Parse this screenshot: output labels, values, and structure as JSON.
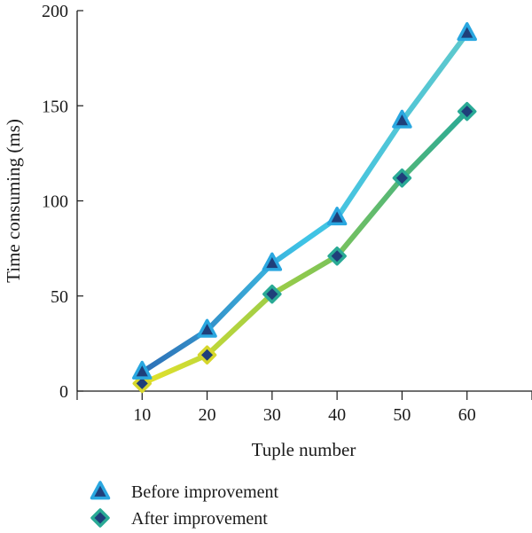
{
  "chart_data": {
    "type": "line",
    "xlabel": "Tuple number",
    "ylabel": "Time consuming (ms)",
    "x": [
      10,
      20,
      30,
      40,
      50,
      60
    ],
    "xlim": [
      0,
      70
    ],
    "ylim": [
      0,
      200
    ],
    "xticks": [
      "10",
      "20",
      "30",
      "40",
      "50",
      "60"
    ],
    "yticks": [
      "0",
      "50",
      "100",
      "150",
      "200"
    ],
    "grid": false,
    "legend_position": "bottom-left",
    "series": [
      {
        "name": "Before improvement",
        "values": [
          10,
          32,
          67,
          91,
          142,
          188
        ],
        "marker": "triangle",
        "gradient": [
          "#2d6fb6",
          "#3ec3e6",
          "#5ec8cc"
        ],
        "marker_fill": "#1f3f7a",
        "marker_edge": "#2aa7e0"
      },
      {
        "name": "After improvement",
        "values": [
          4,
          19,
          51,
          71,
          112,
          147
        ],
        "marker": "diamond",
        "gradient": [
          "#e4e22a",
          "#8cc84e",
          "#2aaa96"
        ],
        "marker_fill": "#1f3f7a",
        "marker_edge_start": "#d6d62b",
        "marker_edge_end": "#2aaa96"
      }
    ]
  }
}
